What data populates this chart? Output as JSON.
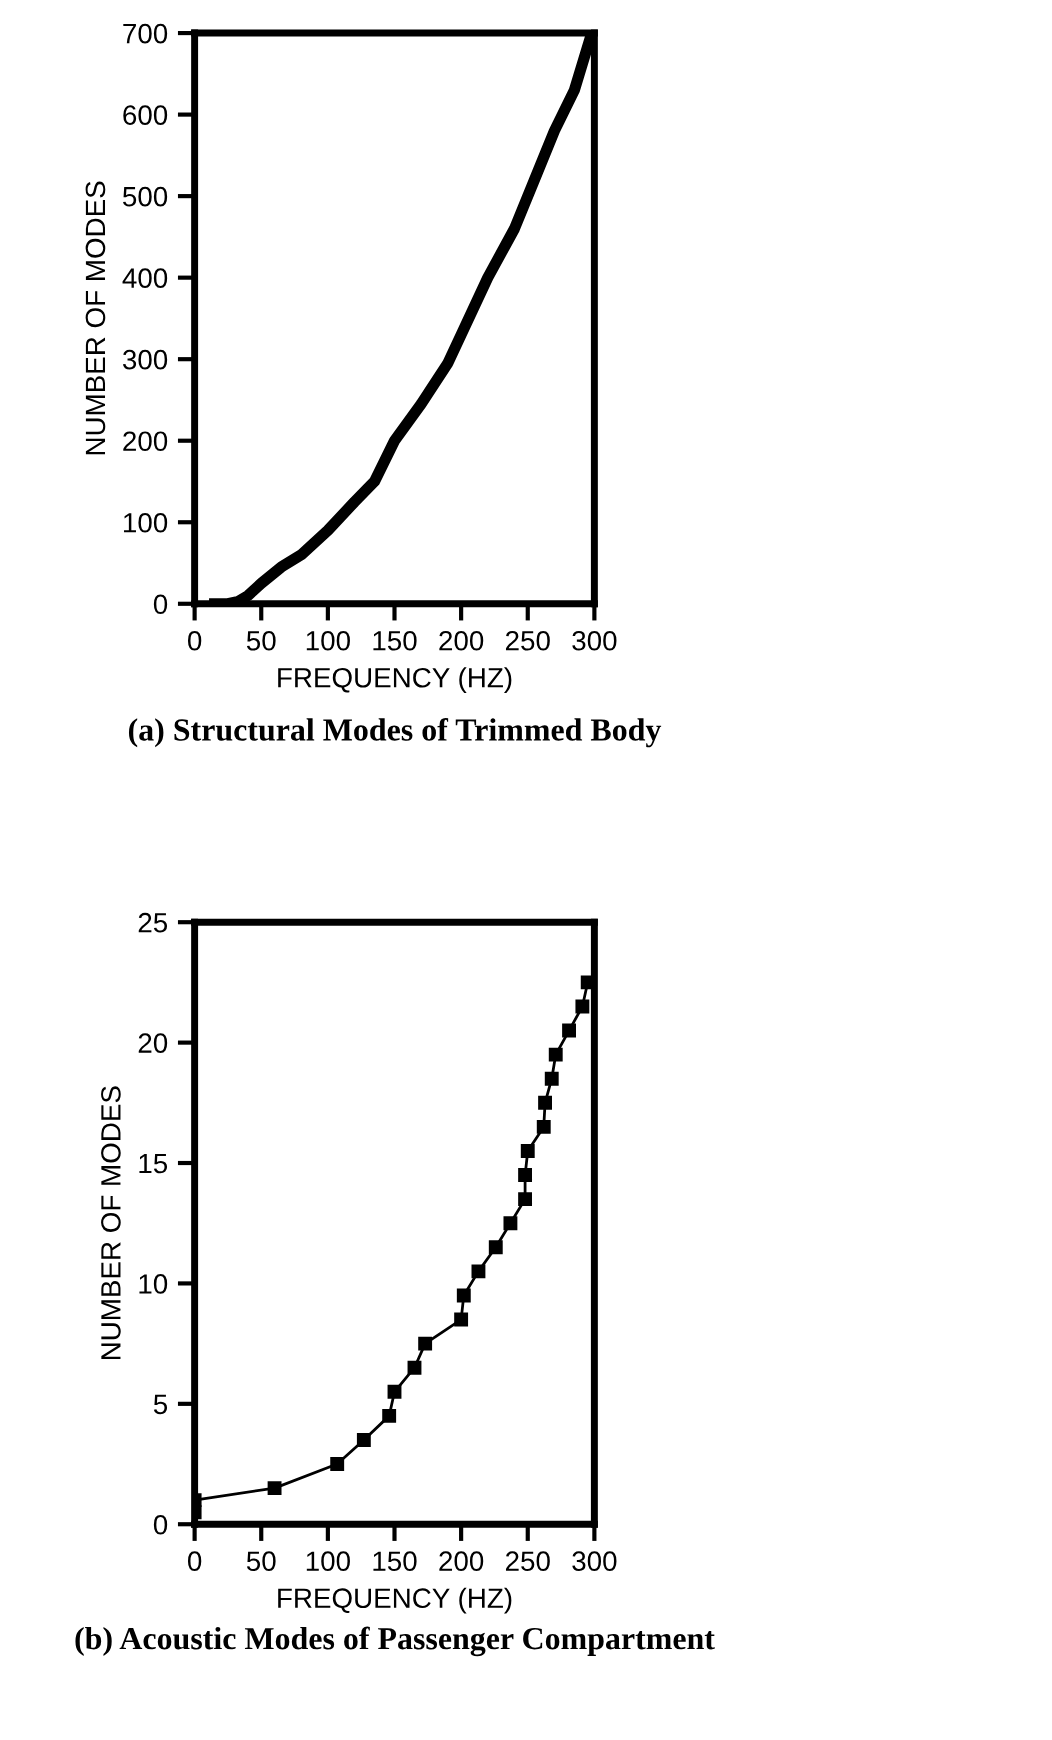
{
  "chart_data": [
    {
      "type": "line",
      "xlabel": "FREQUENCY (HZ)",
      "ylabel": "NUMBER OF MODES",
      "annotations": [
        "(a) Structural Modes of Trimmed Body"
      ],
      "marker": "none",
      "line_style": "solid",
      "grid": false,
      "legend": false,
      "xlim": [
        0,
        300
      ],
      "ylim": [
        0,
        700
      ],
      "xticks": [
        0,
        50,
        100,
        150,
        200,
        250,
        300
      ],
      "yticks": [
        0,
        100,
        200,
        300,
        400,
        500,
        600,
        700
      ],
      "series": [
        {
          "color": "#000000",
          "x": [
            15,
            25,
            33,
            40,
            50,
            65,
            80,
            100,
            120,
            135,
            150,
            170,
            190,
            200,
            220,
            240,
            255,
            270,
            285,
            298
          ],
          "values": [
            0,
            0,
            3,
            10,
            25,
            45,
            60,
            90,
            125,
            150,
            200,
            245,
            295,
            330,
            400,
            460,
            520,
            580,
            630,
            700
          ]
        }
      ]
    },
    {
      "type": "line",
      "xlabel": "FREQUENCY (HZ)",
      "ylabel": "NUMBER OF MODES",
      "annotations": [
        "(b) Acoustic Modes of Passenger Compartment"
      ],
      "marker": "square",
      "line_style": "solid",
      "grid": false,
      "legend": false,
      "xlim": [
        0,
        300
      ],
      "ylim": [
        0,
        25
      ],
      "xticks": [
        0,
        50,
        100,
        150,
        200,
        250,
        300
      ],
      "yticks": [
        0,
        5,
        10,
        15,
        20,
        25
      ],
      "series": [
        {
          "color": "#000000",
          "x": [
            0,
            0,
            60,
            107,
            127,
            146,
            150,
            165,
            173,
            200,
            202,
            213,
            226,
            237,
            248,
            248,
            250,
            262,
            263,
            268,
            271,
            281,
            291,
            295
          ],
          "values": [
            0.5,
            1,
            1.5,
            2.5,
            3.5,
            4.5,
            5.5,
            6.5,
            7.5,
            8.5,
            9.5,
            10.5,
            11.5,
            12.5,
            13.5,
            14.5,
            15.5,
            16.5,
            17.5,
            18.5,
            19.5,
            20.5,
            21.5,
            22.5
          ]
        }
      ]
    }
  ]
}
